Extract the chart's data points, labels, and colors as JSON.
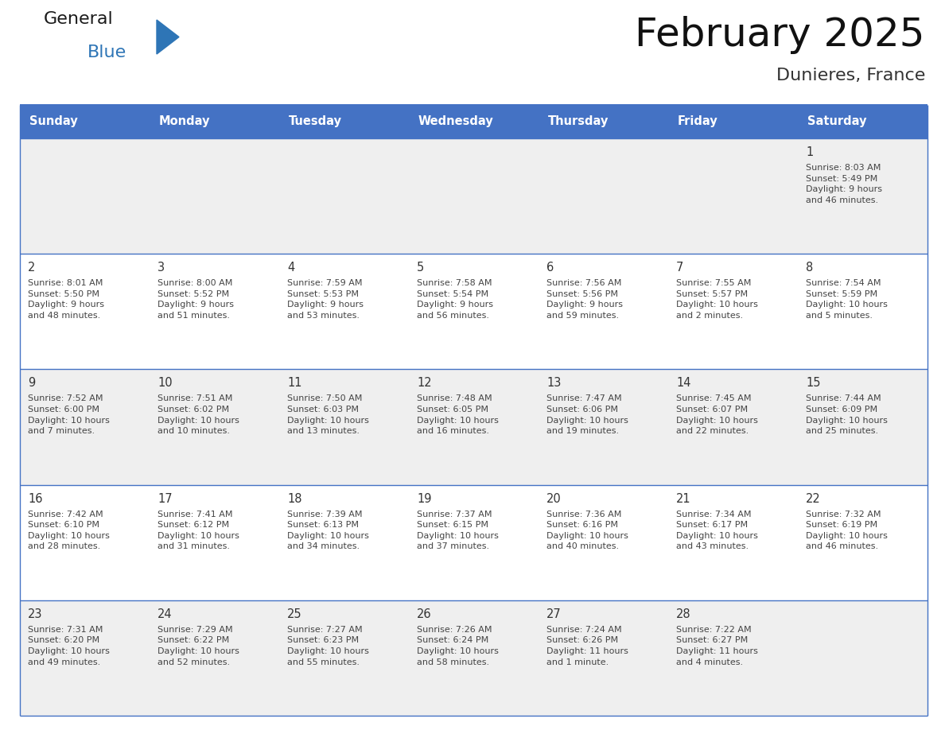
{
  "title": "February 2025",
  "subtitle": "Dunieres, France",
  "header_bg": "#4472C4",
  "header_text_color": "#FFFFFF",
  "days_of_week": [
    "Sunday",
    "Monday",
    "Tuesday",
    "Wednesday",
    "Thursday",
    "Friday",
    "Saturday"
  ],
  "row_bgs": [
    "#EFEFEF",
    "#FFFFFF",
    "#EFEFEF",
    "#FFFFFF",
    "#EFEFEF"
  ],
  "border_color": "#4472C4",
  "day_number_color": "#333333",
  "info_text_color": "#444444",
  "calendar": [
    [
      {
        "day": "",
        "info": ""
      },
      {
        "day": "",
        "info": ""
      },
      {
        "day": "",
        "info": ""
      },
      {
        "day": "",
        "info": ""
      },
      {
        "day": "",
        "info": ""
      },
      {
        "day": "",
        "info": ""
      },
      {
        "day": "1",
        "info": "Sunrise: 8:03 AM\nSunset: 5:49 PM\nDaylight: 9 hours\nand 46 minutes."
      }
    ],
    [
      {
        "day": "2",
        "info": "Sunrise: 8:01 AM\nSunset: 5:50 PM\nDaylight: 9 hours\nand 48 minutes."
      },
      {
        "day": "3",
        "info": "Sunrise: 8:00 AM\nSunset: 5:52 PM\nDaylight: 9 hours\nand 51 minutes."
      },
      {
        "day": "4",
        "info": "Sunrise: 7:59 AM\nSunset: 5:53 PM\nDaylight: 9 hours\nand 53 minutes."
      },
      {
        "day": "5",
        "info": "Sunrise: 7:58 AM\nSunset: 5:54 PM\nDaylight: 9 hours\nand 56 minutes."
      },
      {
        "day": "6",
        "info": "Sunrise: 7:56 AM\nSunset: 5:56 PM\nDaylight: 9 hours\nand 59 minutes."
      },
      {
        "day": "7",
        "info": "Sunrise: 7:55 AM\nSunset: 5:57 PM\nDaylight: 10 hours\nand 2 minutes."
      },
      {
        "day": "8",
        "info": "Sunrise: 7:54 AM\nSunset: 5:59 PM\nDaylight: 10 hours\nand 5 minutes."
      }
    ],
    [
      {
        "day": "9",
        "info": "Sunrise: 7:52 AM\nSunset: 6:00 PM\nDaylight: 10 hours\nand 7 minutes."
      },
      {
        "day": "10",
        "info": "Sunrise: 7:51 AM\nSunset: 6:02 PM\nDaylight: 10 hours\nand 10 minutes."
      },
      {
        "day": "11",
        "info": "Sunrise: 7:50 AM\nSunset: 6:03 PM\nDaylight: 10 hours\nand 13 minutes."
      },
      {
        "day": "12",
        "info": "Sunrise: 7:48 AM\nSunset: 6:05 PM\nDaylight: 10 hours\nand 16 minutes."
      },
      {
        "day": "13",
        "info": "Sunrise: 7:47 AM\nSunset: 6:06 PM\nDaylight: 10 hours\nand 19 minutes."
      },
      {
        "day": "14",
        "info": "Sunrise: 7:45 AM\nSunset: 6:07 PM\nDaylight: 10 hours\nand 22 minutes."
      },
      {
        "day": "15",
        "info": "Sunrise: 7:44 AM\nSunset: 6:09 PM\nDaylight: 10 hours\nand 25 minutes."
      }
    ],
    [
      {
        "day": "16",
        "info": "Sunrise: 7:42 AM\nSunset: 6:10 PM\nDaylight: 10 hours\nand 28 minutes."
      },
      {
        "day": "17",
        "info": "Sunrise: 7:41 AM\nSunset: 6:12 PM\nDaylight: 10 hours\nand 31 minutes."
      },
      {
        "day": "18",
        "info": "Sunrise: 7:39 AM\nSunset: 6:13 PM\nDaylight: 10 hours\nand 34 minutes."
      },
      {
        "day": "19",
        "info": "Sunrise: 7:37 AM\nSunset: 6:15 PM\nDaylight: 10 hours\nand 37 minutes."
      },
      {
        "day": "20",
        "info": "Sunrise: 7:36 AM\nSunset: 6:16 PM\nDaylight: 10 hours\nand 40 minutes."
      },
      {
        "day": "21",
        "info": "Sunrise: 7:34 AM\nSunset: 6:17 PM\nDaylight: 10 hours\nand 43 minutes."
      },
      {
        "day": "22",
        "info": "Sunrise: 7:32 AM\nSunset: 6:19 PM\nDaylight: 10 hours\nand 46 minutes."
      }
    ],
    [
      {
        "day": "23",
        "info": "Sunrise: 7:31 AM\nSunset: 6:20 PM\nDaylight: 10 hours\nand 49 minutes."
      },
      {
        "day": "24",
        "info": "Sunrise: 7:29 AM\nSunset: 6:22 PM\nDaylight: 10 hours\nand 52 minutes."
      },
      {
        "day": "25",
        "info": "Sunrise: 7:27 AM\nSunset: 6:23 PM\nDaylight: 10 hours\nand 55 minutes."
      },
      {
        "day": "26",
        "info": "Sunrise: 7:26 AM\nSunset: 6:24 PM\nDaylight: 10 hours\nand 58 minutes."
      },
      {
        "day": "27",
        "info": "Sunrise: 7:24 AM\nSunset: 6:26 PM\nDaylight: 11 hours\nand 1 minute."
      },
      {
        "day": "28",
        "info": "Sunrise: 7:22 AM\nSunset: 6:27 PM\nDaylight: 11 hours\nand 4 minutes."
      },
      {
        "day": "",
        "info": ""
      }
    ]
  ]
}
